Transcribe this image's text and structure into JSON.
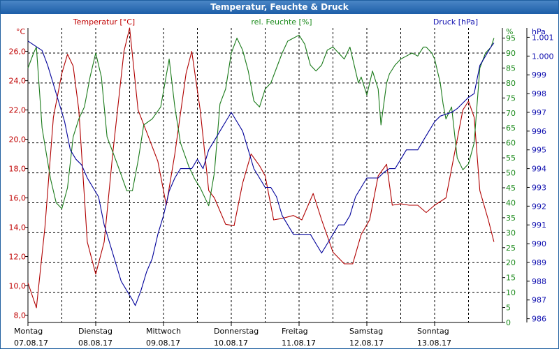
{
  "window": {
    "title": "Temperatur, Feuchte & Druck"
  },
  "colors": {
    "temperature": "#b00000",
    "humidity": "#1a7a1a",
    "pressure": "#00009a",
    "axis_temp": "#c00000",
    "axis_hum": "#1a8a1a",
    "axis_press": "#1010b0"
  },
  "chart_data": {
    "type": "line",
    "title": "Temperatur, Feuchte & Druck",
    "grid": true,
    "x": {
      "type": "time",
      "unit": "hours since Montag 07.08.17 00:00",
      "xlim": [
        0,
        168
      ],
      "ticks": [
        0,
        24,
        48,
        72,
        96,
        120,
        144
      ],
      "days": [
        "Montag",
        "Dienstag",
        "Mittwoch",
        "Donnerstag",
        "Freitag",
        "Samstag",
        "Sonntag"
      ],
      "dates": [
        "07.08.17",
        "08.08.17",
        "09.08.17",
        "10.08.17",
        "11.08.17",
        "12.08.17",
        "13.08.17"
      ]
    },
    "axes": {
      "temperature": {
        "label": "Temperatur [°C]",
        "unit": "°C",
        "ylim": [
          7.5,
          27.6
        ],
        "ticks": [
          "8,0",
          "10,0",
          "12,0",
          "14,0",
          "16,0",
          "18,0",
          "20,0",
          "22,0",
          "24,0",
          "26,0"
        ],
        "tick_values": [
          8,
          10,
          12,
          14,
          16,
          18,
          20,
          22,
          24,
          26
        ]
      },
      "humidity": {
        "label": "rel. Feuchte [%]",
        "unit": "%",
        "ylim": [
          0,
          98.4
        ],
        "ticks": [
          "0",
          "5",
          "10",
          "15",
          "20",
          "25",
          "30",
          "35",
          "40",
          "45",
          "50",
          "55",
          "60",
          "65",
          "70",
          "75",
          "80",
          "85",
          "90",
          "95"
        ],
        "tick_values": [
          0,
          5,
          10,
          15,
          20,
          25,
          30,
          35,
          40,
          45,
          50,
          55,
          60,
          65,
          70,
          75,
          80,
          85,
          90,
          95
        ]
      },
      "pressure": {
        "label": "Druck [hPa]",
        "unit": "hPa",
        "ylim": [
          985.8,
          1001.5
        ],
        "ticks": [
          "986",
          "987",
          "988",
          "989",
          "990",
          "991",
          "992",
          "993",
          "994",
          "995",
          "996",
          "997",
          "998",
          "999",
          "1.000",
          "1.001"
        ],
        "tick_values": [
          986,
          987,
          988,
          989,
          990,
          991,
          992,
          993,
          994,
          995,
          996,
          997,
          998,
          999,
          1000,
          1001
        ]
      }
    },
    "series": [
      {
        "name": "Temperatur [°C]",
        "axis": "temperature",
        "color": "#b00000",
        "points": [
          [
            0,
            10.2
          ],
          [
            3,
            8.5
          ],
          [
            6,
            14
          ],
          [
            9,
            21.5
          ],
          [
            12,
            24.5
          ],
          [
            14,
            25.8
          ],
          [
            16,
            25
          ],
          [
            18,
            22
          ],
          [
            21,
            13
          ],
          [
            24,
            10.8
          ],
          [
            27,
            13
          ],
          [
            30,
            19
          ],
          [
            34,
            26
          ],
          [
            36,
            27.6
          ],
          [
            39,
            22
          ],
          [
            42,
            20.5
          ],
          [
            46,
            18.5
          ],
          [
            49,
            15.5
          ],
          [
            52,
            19
          ],
          [
            56,
            24.5
          ],
          [
            58,
            26
          ],
          [
            61,
            22
          ],
          [
            64,
            16.5
          ],
          [
            66,
            16
          ],
          [
            70,
            14.2
          ],
          [
            73,
            14.1
          ],
          [
            76,
            17
          ],
          [
            79,
            19
          ],
          [
            82,
            18.2
          ],
          [
            84,
            17.5
          ],
          [
            87,
            14.5
          ],
          [
            90,
            14.6
          ],
          [
            94,
            14.8
          ],
          [
            97,
            14.5
          ],
          [
            101,
            16.3
          ],
          [
            104,
            14.5
          ],
          [
            108,
            12.3
          ],
          [
            112,
            11.5
          ],
          [
            115,
            11.5
          ],
          [
            118,
            13.5
          ],
          [
            121,
            14.5
          ],
          [
            124,
            17.5
          ],
          [
            127,
            18.3
          ],
          [
            129,
            15.5
          ],
          [
            132,
            15.6
          ],
          [
            135,
            15.5
          ],
          [
            138,
            15.5
          ],
          [
            141,
            15
          ],
          [
            144,
            15.5
          ],
          [
            148,
            16
          ],
          [
            151,
            19
          ],
          [
            154,
            22
          ],
          [
            156,
            22.6
          ],
          [
            158,
            21.5
          ],
          [
            160,
            16.5
          ],
          [
            163,
            14.5
          ],
          [
            165,
            13
          ]
        ]
      },
      {
        "name": "rel. Feuchte [%]",
        "axis": "humidity",
        "color": "#1a7a1a",
        "points": [
          [
            0,
            85
          ],
          [
            2,
            90
          ],
          [
            3,
            92
          ],
          [
            5,
            65
          ],
          [
            8,
            48
          ],
          [
            10,
            40
          ],
          [
            12,
            38
          ],
          [
            14,
            45
          ],
          [
            16,
            62
          ],
          [
            18,
            68
          ],
          [
            20,
            72
          ],
          [
            22,
            82
          ],
          [
            24,
            90
          ],
          [
            26,
            82
          ],
          [
            28,
            62
          ],
          [
            30,
            57
          ],
          [
            32,
            52
          ],
          [
            35,
            44
          ],
          [
            37,
            44
          ],
          [
            39,
            54
          ],
          [
            41,
            66
          ],
          [
            44,
            68
          ],
          [
            47,
            72
          ],
          [
            50,
            88
          ],
          [
            52,
            72
          ],
          [
            54,
            60
          ],
          [
            57,
            52
          ],
          [
            59,
            48
          ],
          [
            61,
            45
          ],
          [
            64,
            39
          ],
          [
            66,
            50
          ],
          [
            68,
            73
          ],
          [
            70,
            78
          ],
          [
            72,
            90
          ],
          [
            74,
            95
          ],
          [
            76,
            91
          ],
          [
            78,
            84
          ],
          [
            80,
            74
          ],
          [
            82,
            72
          ],
          [
            84,
            78
          ],
          [
            86,
            80
          ],
          [
            88,
            85
          ],
          [
            90,
            90
          ],
          [
            92,
            94
          ],
          [
            94,
            95
          ],
          [
            96,
            96
          ],
          [
            98,
            93
          ],
          [
            100,
            86
          ],
          [
            102,
            84
          ],
          [
            104,
            86
          ],
          [
            106,
            91
          ],
          [
            108,
            92
          ],
          [
            110,
            90
          ],
          [
            112,
            88
          ],
          [
            114,
            92
          ],
          [
            117,
            80
          ],
          [
            118,
            82
          ],
          [
            120,
            76
          ],
          [
            122,
            84
          ],
          [
            124,
            78
          ],
          [
            125,
            66
          ],
          [
            127,
            80
          ],
          [
            128,
            83
          ],
          [
            130,
            86
          ],
          [
            132,
            88
          ],
          [
            134,
            89
          ],
          [
            136,
            90
          ],
          [
            138,
            89
          ],
          [
            140,
            92
          ],
          [
            141,
            92
          ],
          [
            143,
            90
          ],
          [
            144,
            88
          ],
          [
            146,
            80
          ],
          [
            147,
            73
          ],
          [
            148,
            68
          ],
          [
            150,
            72
          ],
          [
            152,
            55
          ],
          [
            154,
            51
          ],
          [
            156,
            53
          ],
          [
            158,
            60
          ],
          [
            160,
            85
          ],
          [
            162,
            90
          ],
          [
            164,
            92
          ],
          [
            165,
            95
          ]
        ]
      },
      {
        "name": "Druck [hPa]",
        "axis": "pressure",
        "color": "#00009a",
        "points": [
          [
            0,
            1000.8
          ],
          [
            3,
            1000.5
          ],
          [
            5,
            1000.3
          ],
          [
            7,
            999.5
          ],
          [
            9,
            998.5
          ],
          [
            11,
            997.5
          ],
          [
            13,
            996.5
          ],
          [
            15,
            995
          ],
          [
            17,
            994.5
          ],
          [
            19,
            994.2
          ],
          [
            21,
            993.5
          ],
          [
            23,
            993
          ],
          [
            25,
            992.5
          ],
          [
            27,
            991
          ],
          [
            29,
            990
          ],
          [
            31,
            989
          ],
          [
            33,
            988
          ],
          [
            35,
            987.5
          ],
          [
            37,
            987
          ],
          [
            38,
            986.7
          ],
          [
            40,
            987.5
          ],
          [
            42,
            988.5
          ],
          [
            44,
            989.2
          ],
          [
            46,
            990.5
          ],
          [
            48,
            991.5
          ],
          [
            50,
            992.8
          ],
          [
            52,
            993.5
          ],
          [
            54,
            994
          ],
          [
            56,
            994
          ],
          [
            58,
            994
          ],
          [
            60,
            994.5
          ],
          [
            62,
            994
          ],
          [
            64,
            995
          ],
          [
            66,
            995.5
          ],
          [
            68,
            996
          ],
          [
            70,
            996.5
          ],
          [
            72,
            997
          ],
          [
            74,
            996.5
          ],
          [
            76,
            996
          ],
          [
            78,
            995
          ],
          [
            80,
            994
          ],
          [
            82,
            993.5
          ],
          [
            84,
            993
          ],
          [
            86,
            993
          ],
          [
            88,
            992.5
          ],
          [
            90,
            991.5
          ],
          [
            92,
            991
          ],
          [
            94,
            990.5
          ],
          [
            96,
            990.5
          ],
          [
            98,
            990.5
          ],
          [
            100,
            990.5
          ],
          [
            102,
            990
          ],
          [
            104,
            989.5
          ],
          [
            106,
            990
          ],
          [
            108,
            990.5
          ],
          [
            110,
            991
          ],
          [
            112,
            991
          ],
          [
            114,
            991.5
          ],
          [
            116,
            992.5
          ],
          [
            118,
            993
          ],
          [
            120,
            993.5
          ],
          [
            122,
            993.5
          ],
          [
            124,
            993.5
          ],
          [
            126,
            993.8
          ],
          [
            128,
            994
          ],
          [
            130,
            994
          ],
          [
            132,
            994.5
          ],
          [
            134,
            995
          ],
          [
            136,
            995
          ],
          [
            138,
            995
          ],
          [
            140,
            995.5
          ],
          [
            142,
            996
          ],
          [
            144,
            996.5
          ],
          [
            146,
            996.8
          ],
          [
            148,
            996.9
          ],
          [
            150,
            997
          ],
          [
            152,
            997.2
          ],
          [
            154,
            997.5
          ],
          [
            156,
            997.8
          ],
          [
            158,
            998
          ],
          [
            160,
            999.5
          ],
          [
            162,
            1000
          ],
          [
            164,
            1000.5
          ],
          [
            165,
            1000.7
          ]
        ]
      }
    ]
  }
}
